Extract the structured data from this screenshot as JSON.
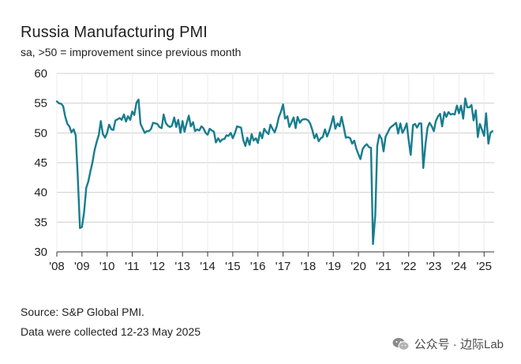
{
  "chart_data": {
    "type": "line",
    "title": "Russia Manufacturing PMI",
    "subtitle": "sa, >50 = improvement since previous month",
    "xlabel": "",
    "ylabel": "",
    "ylim": [
      30,
      60
    ],
    "yticks": [
      30,
      35,
      40,
      45,
      50,
      55,
      60
    ],
    "xlim": [
      2008.0,
      2025.4
    ],
    "xtick_labels": [
      "'08",
      "'09",
      "'10",
      "'11",
      "'12",
      "'13",
      "'14",
      "'15",
      "'16",
      "'17",
      "'18",
      "'19",
      "'20",
      "'21",
      "'22",
      "'23",
      "'24",
      "'25"
    ],
    "xtick_values": [
      2008,
      2009,
      2010,
      2011,
      2012,
      2013,
      2014,
      2015,
      2016,
      2017,
      2018,
      2019,
      2020,
      2021,
      2022,
      2023,
      2024,
      2025
    ],
    "grid": true,
    "color": "#177d8e",
    "series": [
      {
        "name": "Russia Manufacturing PMI",
        "x": [
          2008.0,
          2008.08,
          2008.17,
          2008.25,
          2008.33,
          2008.42,
          2008.5,
          2008.58,
          2008.67,
          2008.75,
          2008.83,
          2008.92,
          2009.0,
          2009.08,
          2009.17,
          2009.25,
          2009.33,
          2009.42,
          2009.5,
          2009.58,
          2009.67,
          2009.75,
          2009.83,
          2009.92,
          2010.0,
          2010.08,
          2010.17,
          2010.25,
          2010.33,
          2010.42,
          2010.5,
          2010.58,
          2010.67,
          2010.75,
          2010.83,
          2010.92,
          2011.0,
          2011.08,
          2011.17,
          2011.25,
          2011.33,
          2011.42,
          2011.5,
          2011.58,
          2011.67,
          2011.75,
          2011.83,
          2011.92,
          2012.0,
          2012.08,
          2012.17,
          2012.25,
          2012.33,
          2012.42,
          2012.5,
          2012.58,
          2012.67,
          2012.75,
          2012.83,
          2012.92,
          2013.0,
          2013.08,
          2013.17,
          2013.25,
          2013.33,
          2013.42,
          2013.5,
          2013.58,
          2013.67,
          2013.75,
          2013.83,
          2013.92,
          2014.0,
          2014.08,
          2014.17,
          2014.25,
          2014.33,
          2014.42,
          2014.5,
          2014.58,
          2014.67,
          2014.75,
          2014.83,
          2014.92,
          2015.0,
          2015.08,
          2015.17,
          2015.25,
          2015.33,
          2015.42,
          2015.5,
          2015.58,
          2015.67,
          2015.75,
          2015.83,
          2015.92,
          2016.0,
          2016.08,
          2016.17,
          2016.25,
          2016.33,
          2016.42,
          2016.5,
          2016.58,
          2016.67,
          2016.75,
          2016.83,
          2016.92,
          2017.0,
          2017.08,
          2017.17,
          2017.25,
          2017.33,
          2017.42,
          2017.5,
          2017.58,
          2017.67,
          2017.75,
          2017.83,
          2017.92,
          2018.0,
          2018.08,
          2018.17,
          2018.25,
          2018.33,
          2018.42,
          2018.5,
          2018.58,
          2018.67,
          2018.75,
          2018.83,
          2018.92,
          2019.0,
          2019.08,
          2019.17,
          2019.25,
          2019.33,
          2019.42,
          2019.5,
          2019.58,
          2019.67,
          2019.75,
          2019.83,
          2019.92,
          2020.0,
          2020.08,
          2020.17,
          2020.25,
          2020.33,
          2020.42,
          2020.5,
          2020.58,
          2020.67,
          2020.75,
          2020.83,
          2020.92,
          2021.0,
          2021.08,
          2021.17,
          2021.25,
          2021.33,
          2021.42,
          2021.5,
          2021.58,
          2021.67,
          2021.75,
          2021.83,
          2021.92,
          2022.0,
          2022.08,
          2022.17,
          2022.25,
          2022.33,
          2022.42,
          2022.5,
          2022.58,
          2022.67,
          2022.75,
          2022.83,
          2022.92,
          2023.0,
          2023.08,
          2023.17,
          2023.25,
          2023.33,
          2023.42,
          2023.5,
          2023.58,
          2023.67,
          2023.75,
          2023.83,
          2023.92,
          2024.0,
          2024.08,
          2024.17,
          2024.25,
          2024.33,
          2024.42,
          2024.5,
          2024.58,
          2024.67,
          2024.75,
          2024.83,
          2024.92,
          2025.0,
          2025.08,
          2025.17,
          2025.25,
          2025.33
        ],
        "values": [
          55.3,
          55.0,
          54.9,
          54.5,
          52.8,
          51.5,
          51.1,
          50.1,
          50.6,
          49.6,
          43.0,
          34.0,
          34.2,
          36.5,
          40.8,
          41.8,
          43.4,
          45.1,
          47.1,
          48.4,
          49.7,
          52.0,
          49.8,
          49.2,
          50.0,
          51.4,
          50.6,
          50.5,
          52.1,
          52.3,
          52.5,
          52.2,
          53.1,
          51.9,
          52.8,
          52.2,
          53.6,
          53.0,
          55.1,
          55.6,
          51.5,
          50.7,
          50.0,
          50.3,
          50.3,
          50.7,
          51.7,
          51.6,
          51.5,
          51.0,
          50.8,
          53.1,
          51.7,
          51.2,
          51.0,
          51.2,
          52.6,
          51.0,
          52.2,
          50.0,
          52.0,
          50.2,
          51.7,
          52.9,
          51.1,
          51.8,
          50.3,
          50.6,
          50.4,
          51.1,
          50.8,
          50.0,
          49.7,
          50.7,
          50.4,
          50.2,
          48.4,
          49.1,
          48.5,
          48.9,
          49.0,
          49.6,
          49.5,
          50.0,
          49.1,
          49.9,
          51.1,
          51.0,
          50.9,
          48.8,
          47.8,
          49.2,
          48.0,
          49.8,
          48.7,
          49.1,
          48.3,
          50.1,
          49.1,
          50.7,
          50.2,
          49.8,
          51.4,
          50.7,
          50.1,
          51.1,
          52.6,
          53.6,
          54.8,
          52.4,
          52.8,
          51.0,
          51.7,
          52.6,
          50.8,
          52.7,
          51.7,
          52.2,
          52.3,
          52.3,
          52.1,
          51.6,
          50.4,
          49.1,
          49.8,
          48.6,
          49.1,
          49.3,
          50.6,
          49.4,
          50.2,
          51.5,
          52.8,
          50.7,
          51.6,
          51.1,
          52.7,
          50.9,
          49.2,
          49.3,
          49.1,
          48.2,
          48.7,
          47.3,
          46.4,
          45.6,
          47.3,
          47.8,
          48.1,
          47.6,
          47.5,
          31.3,
          36.2,
          47.8,
          49.7,
          49.0,
          46.9,
          49.4,
          50.1,
          50.8,
          51.1,
          51.4,
          51.7,
          49.9,
          51.6,
          50.0,
          50.6,
          51.6,
          48.8,
          46.3,
          51.3,
          51.5,
          50.9,
          51.6,
          51.6,
          44.1,
          48.2,
          50.9,
          51.7,
          51.1,
          50.3,
          52.0,
          52.8,
          53.2,
          51.1,
          53.5,
          52.7,
          53.5,
          53.1,
          53.2,
          53.1,
          54.6,
          53.3,
          54.6,
          52.4,
          55.8,
          54.3,
          54.3,
          54.7,
          52.1,
          53.8,
          49.3,
          51.5,
          50.5,
          49.5,
          53.3,
          48.2,
          50.0,
          50.3
        ]
      }
    ]
  },
  "footer": {
    "source": "Source: S&P Global PMI.",
    "collected": "Data were collected 12-23 May 2025"
  },
  "watermark": {
    "text": "公众号 · 边际Lab",
    "icon": "wechat-icon"
  }
}
